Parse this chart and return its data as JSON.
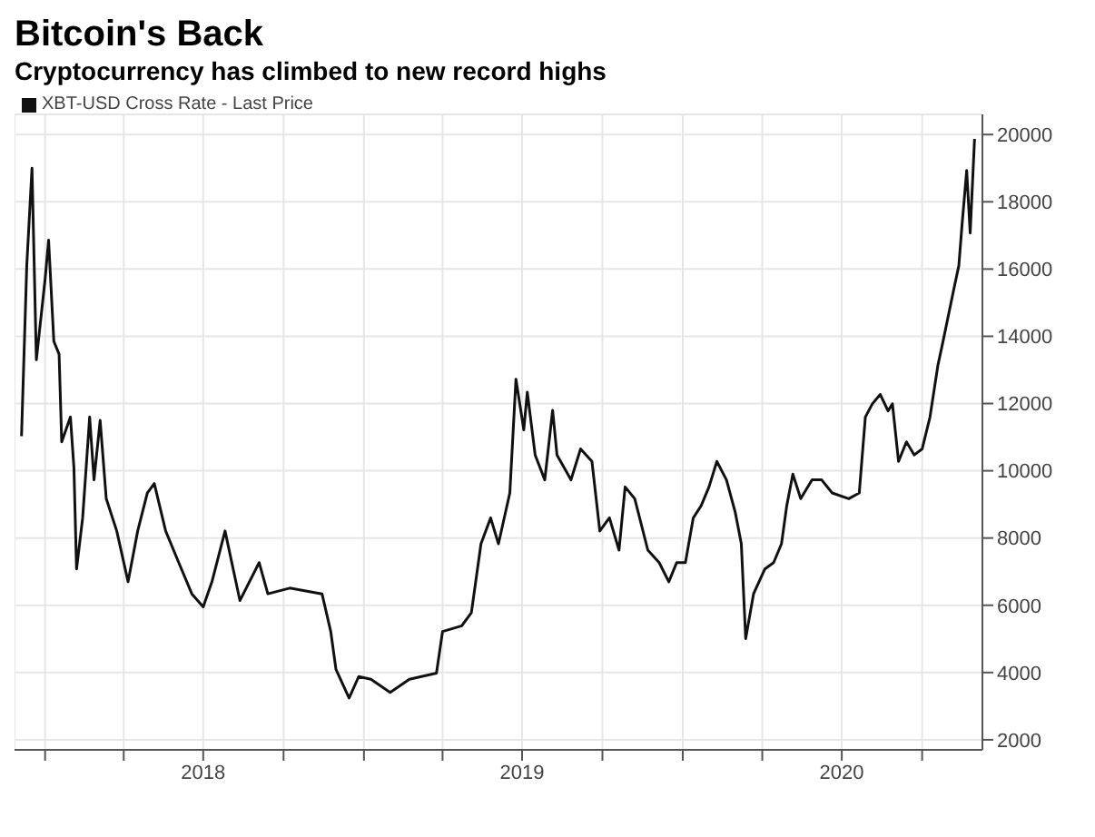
{
  "chart_data": {
    "type": "line",
    "title": "Bitcoin's Back",
    "subtitle": "Cryptocurrency has climbed to new record highs",
    "x": [
      "2017-12-05",
      "2017-12-11",
      "2017-12-17",
      "2017-12-22",
      "2018-01-01",
      "2018-01-05",
      "2018-01-11",
      "2018-01-17",
      "2018-01-20",
      "2018-01-30",
      "2018-02-03",
      "2018-02-06",
      "2018-02-13",
      "2018-02-21",
      "2018-02-26",
      "2018-03-05",
      "2018-03-12",
      "2018-03-24",
      "2018-04-06",
      "2018-04-17",
      "2018-04-28",
      "2018-05-06",
      "2018-05-19",
      "2018-06-03",
      "2018-06-18",
      "2018-07-01",
      "2018-07-11",
      "2018-07-26",
      "2018-08-12",
      "2018-09-03",
      "2018-09-13",
      "2018-10-08",
      "2018-11-14",
      "2018-11-24",
      "2018-11-30",
      "2018-12-15",
      "2018-12-26",
      "2019-01-09",
      "2019-01-31",
      "2019-02-22",
      "2019-03-25",
      "2019-04-01",
      "2019-04-23",
      "2019-05-04",
      "2019-05-15",
      "2019-05-26",
      "2019-06-04",
      "2019-06-17",
      "2019-06-24",
      "2019-07-03",
      "2019-07-07",
      "2019-07-16",
      "2019-07-27",
      "2019-08-05",
      "2019-08-10",
      "2019-08-26",
      "2019-09-06",
      "2019-09-19",
      "2019-09-28",
      "2019-10-09",
      "2019-10-20",
      "2019-10-27",
      "2019-11-07",
      "2019-11-22",
      "2019-12-05",
      "2019-12-16",
      "2019-12-25",
      "2020-01-04",
      "2020-01-13",
      "2020-01-22",
      "2020-01-31",
      "2020-02-09",
      "2020-02-20",
      "2020-03-01",
      "2020-03-08",
      "2020-03-13",
      "2020-03-22",
      "2020-04-04",
      "2020-04-14",
      "2020-04-23",
      "2020-04-29",
      "2020-05-06",
      "2020-05-15",
      "2020-05-28",
      "2020-06-08",
      "2020-06-20",
      "2020-07-09",
      "2020-07-21",
      "2020-07-28",
      "2020-08-05",
      "2020-08-14",
      "2020-08-23",
      "2020-08-28",
      "2020-09-04",
      "2020-09-13",
      "2020-09-22",
      "2020-10-01",
      "2020-10-10",
      "2020-10-19",
      "2020-10-25",
      "2020-11-06",
      "2020-11-12",
      "2020-11-16",
      "2020-11-21",
      "2020-11-25",
      "2020-11-30"
    ],
    "series": [
      {
        "name": "XBT-USD Cross Rate - Last Price",
        "color": "#111111",
        "values": [
          11030,
          16100,
          19000,
          13300,
          15700,
          16860,
          13850,
          13470,
          10860,
          11600,
          10090,
          7080,
          8600,
          11600,
          9730,
          11500,
          9170,
          8210,
          6700,
          8210,
          9340,
          9620,
          8210,
          7270,
          6340,
          5950,
          6700,
          8210,
          6140,
          7270,
          6340,
          6510,
          6340,
          5220,
          4090,
          3240,
          3880,
          3800,
          3410,
          3800,
          3980,
          5220,
          5390,
          5780,
          7830,
          8600,
          7830,
          9340,
          12720,
          11220,
          12340,
          10470,
          9730,
          11800,
          10470,
          9730,
          10650,
          10280,
          8210,
          8600,
          7640,
          9520,
          9170,
          7640,
          7270,
          6700,
          7270,
          7270,
          8600,
          8960,
          9520,
          10280,
          9730,
          8770,
          7830,
          5010,
          6340,
          7080,
          7270,
          7830,
          8960,
          9900,
          9170,
          9730,
          9730,
          9340,
          9170,
          9340,
          11600,
          11990,
          12270,
          11780,
          11990,
          10280,
          10860,
          10470,
          10650,
          11600,
          13130,
          13860,
          15370,
          16100,
          17420,
          18930,
          17070,
          19870
        ]
      }
    ],
    "xlim": [
      "2017-11-27",
      "2020-12-09"
    ],
    "xticks": [
      {
        "value": "2018-01-01",
        "label": null
      },
      {
        "value": "2018-04-01",
        "label": null
      },
      {
        "value": "2018-07-01",
        "label": "2018"
      },
      {
        "value": "2018-10-01",
        "label": null
      },
      {
        "value": "2019-01-01",
        "label": null
      },
      {
        "value": "2019-04-01",
        "label": null
      },
      {
        "value": "2019-07-01",
        "label": "2019"
      },
      {
        "value": "2019-10-01",
        "label": null
      },
      {
        "value": "2020-01-01",
        "label": null
      },
      {
        "value": "2020-04-01",
        "label": null
      },
      {
        "value": "2020-07-01",
        "label": "2020"
      },
      {
        "value": "2020-10-01",
        "label": null
      }
    ],
    "ylim": [
      1700,
      20600
    ],
    "yticks": [
      2000,
      4000,
      6000,
      8000,
      10000,
      12000,
      14000,
      16000,
      18000,
      20000
    ],
    "grid": true,
    "legend": "top left",
    "line_style": "solid",
    "marker": "none"
  }
}
